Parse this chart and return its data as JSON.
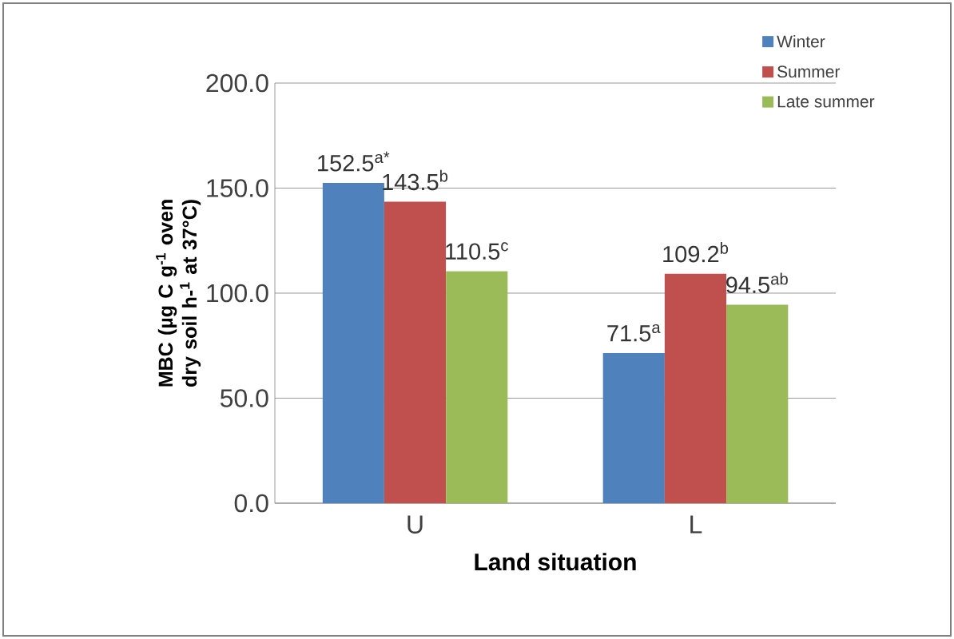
{
  "chart_data": {
    "type": "bar",
    "xlabel": "Land situation",
    "ylabel": "MBC (µg C g$^{-1}$ oven dry soil h-$^{1}$ at 37°C)",
    "categories": [
      "U",
      "L"
    ],
    "series": [
      {
        "name": "Winter",
        "color": "#4f81bd",
        "values": [
          152.5,
          71.5
        ],
        "value_labels": [
          "152.5$^{a*}$",
          "71.5$^{a}$"
        ]
      },
      {
        "name": "Summer",
        "color": "#c0504d",
        "values": [
          143.5,
          109.2
        ],
        "value_labels": [
          "143.5$^{b}$",
          "109.2$^{b}$"
        ]
      },
      {
        "name": "Late summer",
        "color": "#9bbb59",
        "values": [
          110.5,
          94.5
        ],
        "value_labels": [
          "110.5$^{c}$",
          "94.5$^{ab}$"
        ]
      }
    ],
    "ylim": [
      0,
      200
    ],
    "yticks": [
      {
        "value": 0,
        "label": "0.0"
      },
      {
        "value": 50,
        "label": "50.0"
      },
      {
        "value": 100,
        "label": "100.0"
      },
      {
        "value": 150,
        "label": "150.0"
      },
      {
        "value": 200,
        "label": "200.0"
      }
    ],
    "grid": "y",
    "legend": "top right"
  }
}
